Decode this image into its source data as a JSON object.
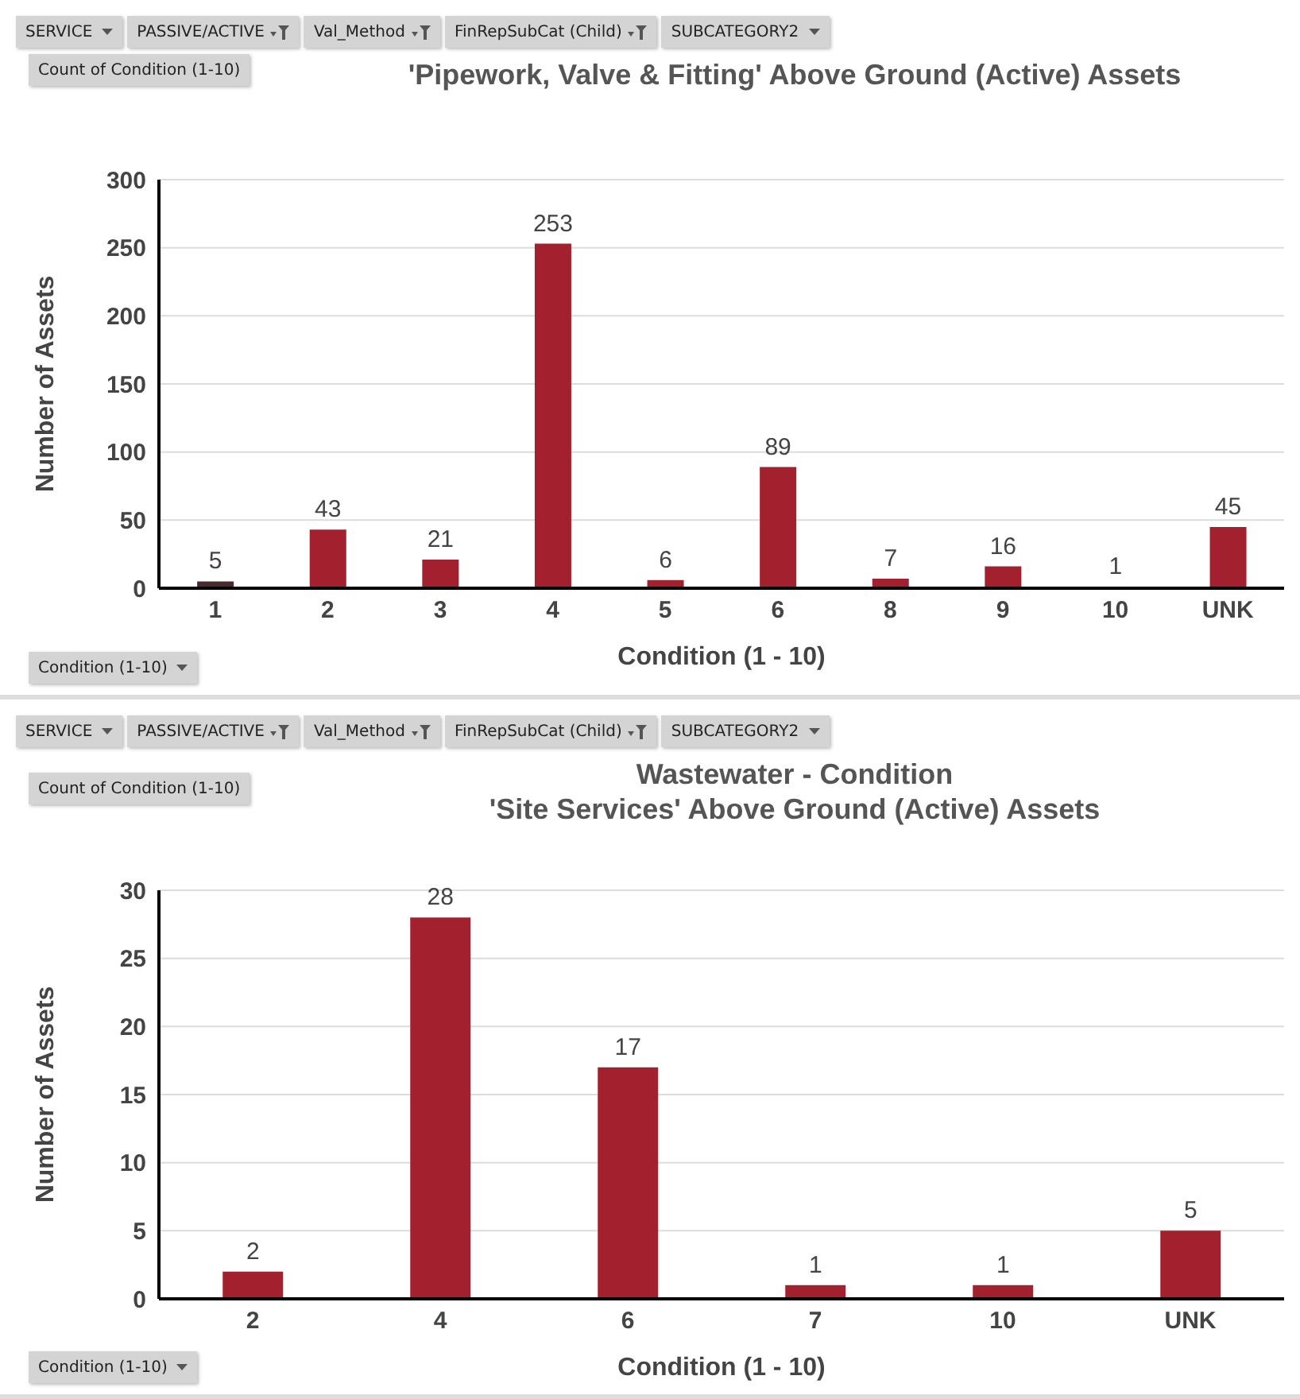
{
  "chart_data": [
    {
      "type": "bar",
      "title": "'Pipework, Valve & Fitting' Above Ground (Active) Assets",
      "xlabel": "Condition (1 - 10)",
      "ylabel": "Number of Assets",
      "categories": [
        "1",
        "2",
        "3",
        "4",
        "5",
        "6",
        "8",
        "9",
        "10",
        "UNK"
      ],
      "values": [
        5,
        43,
        21,
        253,
        6,
        89,
        7,
        16,
        1,
        45
      ],
      "colors": [
        "#4a2a2e",
        "#a3212f",
        "#a3212f",
        "#a3212f",
        "#a3212f",
        "#a3212f",
        "#a3212f",
        "#a3212f",
        "#a3212f",
        "#a3212f"
      ],
      "ylim": [
        0,
        300
      ],
      "yticks": [
        0,
        50,
        100,
        150,
        200,
        250,
        300
      ],
      "grid": "y",
      "data_labels": true,
      "annotations": [
        "SERVICE",
        "PASSIVE/ACTIVE",
        "Val_Method",
        "FinRepSubCat (Child)",
        "SUBCATEGORY2",
        "Count of Condition (1-10)",
        "Condition (1-10)"
      ]
    },
    {
      "type": "bar",
      "title": "Wastewater - Condition",
      "subtitle": "'Site Services' Above Ground (Active) Assets",
      "xlabel": "Condition (1 - 10)",
      "ylabel": "Number of Assets",
      "categories": [
        "2",
        "4",
        "6",
        "7",
        "10",
        "UNK"
      ],
      "values": [
        2,
        28,
        17,
        1,
        1,
        5
      ],
      "colors": [
        "#a3212f",
        "#a3212f",
        "#a3212f",
        "#a3212f",
        "#a3212f",
        "#a3212f"
      ],
      "ylim": [
        0,
        30
      ],
      "yticks": [
        0,
        5,
        10,
        15,
        20,
        25,
        30
      ],
      "grid": "y",
      "data_labels": true,
      "annotations": [
        "SERVICE",
        "PASSIVE/ACTIVE",
        "Val_Method",
        "FinRepSubCat (Child)",
        "SUBCATEGORY2",
        "Count of Condition (1-10)",
        "Condition (1-10)"
      ]
    }
  ]
}
